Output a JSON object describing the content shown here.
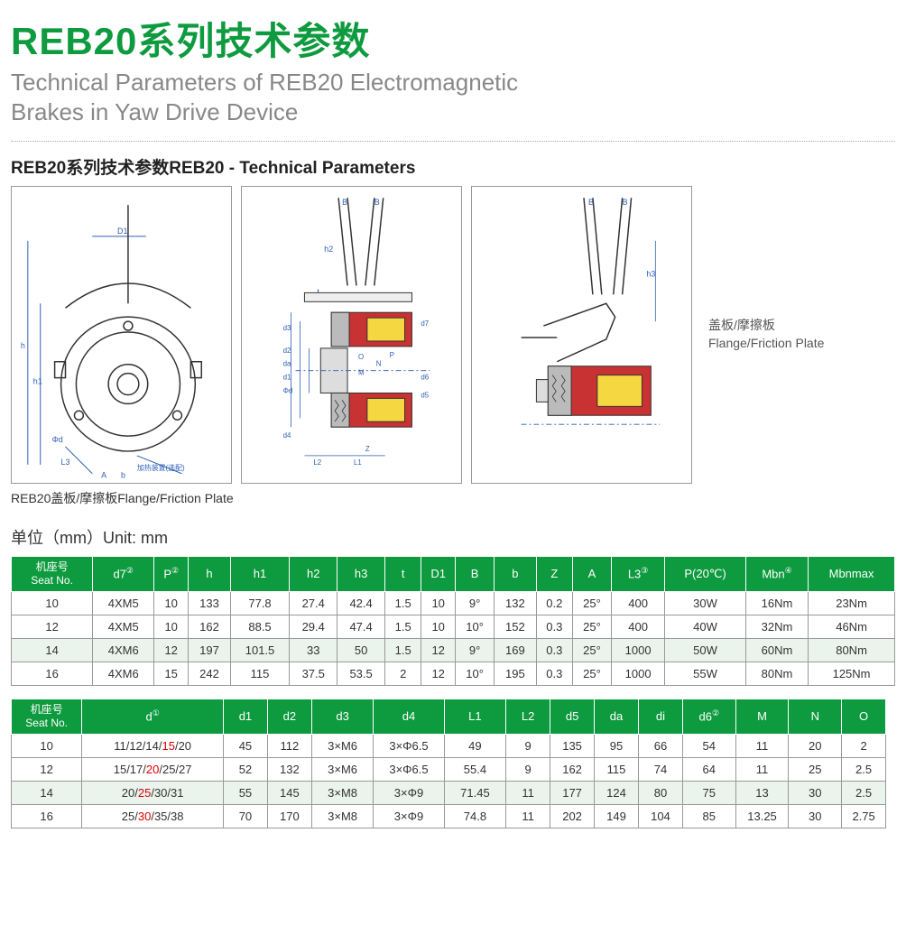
{
  "header": {
    "title_cn": "REB20系列技术参数",
    "title_en_line1": "Technical Parameters of REB20 Electromagnetic",
    "title_en_line2": "Brakes in Yaw Drive Device"
  },
  "subtitle": "REB20系列技术参数REB20 - Technical Parameters",
  "side_label_cn": "盖板/摩擦板",
  "side_label_en": "Flange/Friction Plate",
  "caption": "REB20盖板/摩擦板Flange/Friction Plate",
  "unit_label": "单位（mm）Unit: mm",
  "colors": {
    "accent": "#0e9a3e",
    "header_text": "#ffffff",
    "row_alt": "#eaf4ed",
    "border": "#999999",
    "red": "#dd0000",
    "diag_blue": "#2e5fb3",
    "diag_red": "#c83232",
    "diag_yellow": "#f5d742",
    "diag_gray": "#bbbbbb"
  },
  "table1": {
    "seat_label_cn": "机座号",
    "seat_label_en": "Seat No.",
    "cols": [
      "d7②",
      "P②",
      "h",
      "h1",
      "h2",
      "h3",
      "t",
      "D1",
      "B",
      "b",
      "Z",
      "A",
      "L3③",
      "P(20℃)",
      "Mbn④",
      "Mbnmax"
    ],
    "rows": [
      {
        "seat": "10",
        "alt": false,
        "cells": [
          "4XM5",
          "10",
          "133",
          "77.8",
          "27.4",
          "42.4",
          "1.5",
          "10",
          "9°",
          "132",
          "0.2",
          "25°",
          "400",
          "30W",
          "16Nm",
          "23Nm"
        ]
      },
      {
        "seat": "12",
        "alt": false,
        "cells": [
          "4XM5",
          "10",
          "162",
          "88.5",
          "29.4",
          "47.4",
          "1.5",
          "10",
          "10°",
          "152",
          "0.3",
          "25°",
          "400",
          "40W",
          "32Nm",
          "46Nm"
        ]
      },
      {
        "seat": "14",
        "alt": true,
        "cells": [
          "4XM6",
          "12",
          "197",
          "101.5",
          "33",
          "50",
          "1.5",
          "12",
          "9°",
          "169",
          "0.3",
          "25°",
          "1000",
          "50W",
          "60Nm",
          "80Nm"
        ]
      },
      {
        "seat": "16",
        "alt": false,
        "cells": [
          "4XM6",
          "15",
          "242",
          "115",
          "37.5",
          "53.5",
          "2",
          "12",
          "10°",
          "195",
          "0.3",
          "25°",
          "1000",
          "55W",
          "80Nm",
          "125Nm"
        ]
      }
    ]
  },
  "table2": {
    "seat_label_cn": "机座号",
    "seat_label_en": "Seat No.",
    "cols": [
      "d①",
      "d1",
      "d2",
      "d3",
      "d4",
      "L1",
      "L2",
      "d5",
      "da",
      "di",
      "d6②",
      "M",
      "N",
      "O"
    ],
    "col_widths_pct": [
      16,
      5,
      5,
      7,
      8,
      7,
      5,
      5,
      5,
      5,
      6,
      6,
      6,
      5,
      5
    ],
    "rows": [
      {
        "seat": "10",
        "alt": false,
        "d_parts": [
          "11/12/14/",
          "15",
          "/20"
        ],
        "cells": [
          "45",
          "112",
          "3×M6",
          "3×Φ6.5",
          "49",
          "9",
          "135",
          "95",
          "66",
          "54",
          "11",
          "20",
          "2"
        ]
      },
      {
        "seat": "12",
        "alt": false,
        "d_parts": [
          "15/17/",
          "20",
          "/25/27"
        ],
        "cells": [
          "52",
          "132",
          "3×M6",
          "3×Φ6.5",
          "55.4",
          "9",
          "162",
          "115",
          "74",
          "64",
          "11",
          "25",
          "2.5"
        ]
      },
      {
        "seat": "14",
        "alt": true,
        "d_parts": [
          "20/",
          "25",
          "/30/31"
        ],
        "cells": [
          "55",
          "145",
          "3×M8",
          "3×Φ9",
          "71.45",
          "11",
          "177",
          "124",
          "80",
          "75",
          "13",
          "30",
          "2.5"
        ]
      },
      {
        "seat": "16",
        "alt": false,
        "d_parts": [
          "25/",
          "30",
          "/35/38"
        ],
        "cells": [
          "70",
          "170",
          "3×M8",
          "3×Φ9",
          "74.8",
          "11",
          "202",
          "149",
          "104",
          "85",
          "13.25",
          "30",
          "2.75"
        ]
      }
    ]
  },
  "diagrams": {
    "view1_labels": [
      "D1",
      "h",
      "h1",
      "Φd",
      "L3",
      "A",
      "b",
      "加热装置（选配）"
    ],
    "view2_labels": [
      "B",
      "B",
      "h2",
      "t",
      "d3",
      "d2",
      "da",
      "d1",
      "Φd",
      "d4",
      "L2",
      "L1",
      "O",
      "M",
      "N",
      "P",
      "Z",
      "d7",
      "d6",
      "d5"
    ],
    "view3_labels": [
      "B",
      "B",
      "h3"
    ]
  }
}
